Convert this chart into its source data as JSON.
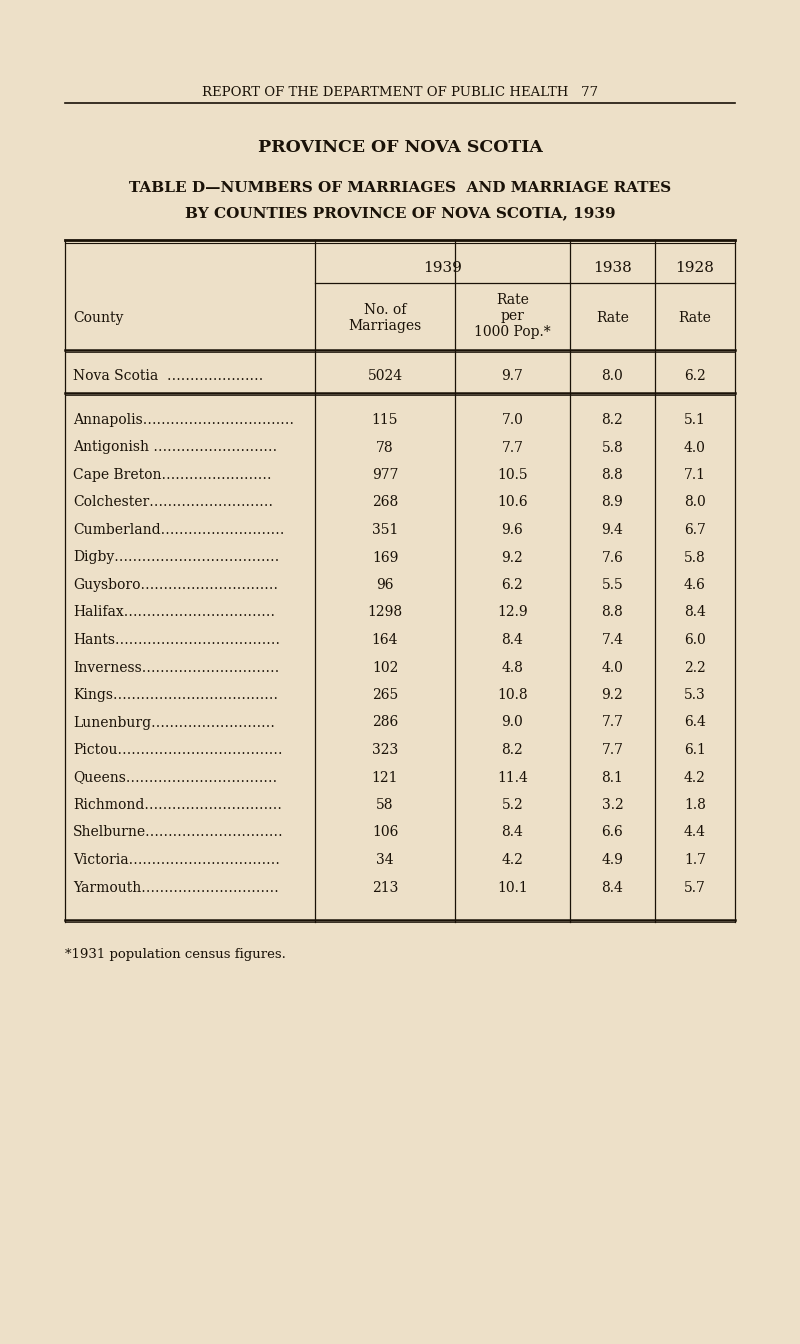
{
  "page_header": "REPORT OF THE DEPARTMENT OF PUBLIC HEALTH   77",
  "title1": "PROVINCE OF NOVA SCOTIA",
  "title2": "TABLE D—NUMBERS OF MARRIAGES  AND MARRIAGE RATES",
  "title3": "BY COUNTIES PROVINCE OF NOVA SCOTIA, 1939",
  "footnote": "*1931 population census figures.",
  "nova_scotia_row": [
    "Nova Scotia  …………………",
    "5024",
    "9.7",
    "8.0",
    "6.2"
  ],
  "rows": [
    [
      "Annapolis……………………………",
      "115",
      "7.0",
      "8.2",
      "5.1"
    ],
    [
      "Antigonish ………………………",
      "78",
      "7.7",
      "5.8",
      "4.0"
    ],
    [
      "Cape Breton……………………",
      "977",
      "10.5",
      "8.8",
      "7.1"
    ],
    [
      "Colchester………………………",
      "268",
      "10.6",
      "8.9",
      "8.0"
    ],
    [
      "Cumberland………………………",
      "351",
      "9.6",
      "9.4",
      "6.7"
    ],
    [
      "Digby………………………………",
      "169",
      "9.2",
      "7.6",
      "5.8"
    ],
    [
      "Guysboro…………………………",
      "96",
      "6.2",
      "5.5",
      "4.6"
    ],
    [
      "Halifax……………………………",
      "1298",
      "12.9",
      "8.8",
      "8.4"
    ],
    [
      "Hants………………………………",
      "164",
      "8.4",
      "7.4",
      "6.0"
    ],
    [
      "Inverness…………………………",
      "102",
      "4.8",
      "4.0",
      "2.2"
    ],
    [
      "Kings………………………………",
      "265",
      "10.8",
      "9.2",
      "5.3"
    ],
    [
      "Lunenburg………………………",
      "286",
      "9.0",
      "7.7",
      "6.4"
    ],
    [
      "Pictou………………………………",
      "323",
      "8.2",
      "7.7",
      "6.1"
    ],
    [
      "Queens……………………………",
      "121",
      "11.4",
      "8.1",
      "4.2"
    ],
    [
      "Richmond…………………………",
      "58",
      "5.2",
      "3.2",
      "1.8"
    ],
    [
      "Shelburne…………………………",
      "106",
      "8.4",
      "6.6",
      "4.4"
    ],
    [
      "Victoria……………………………",
      "34",
      "4.2",
      "4.9",
      "1.7"
    ],
    [
      "Yarmouth…………………………",
      "213",
      "10.1",
      "8.4",
      "5.7"
    ]
  ],
  "bg_color": "#ede0c8",
  "text_color": "#1a1208",
  "line_color": "#1a1208",
  "fig_width": 8.0,
  "fig_height": 13.44,
  "dpi": 100
}
